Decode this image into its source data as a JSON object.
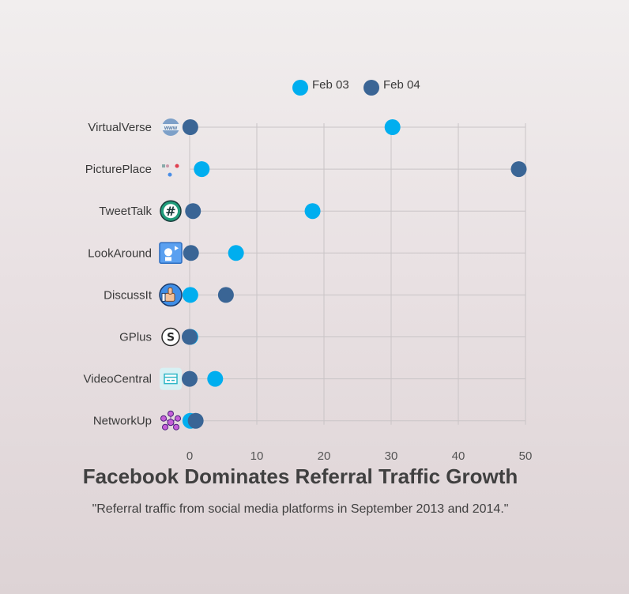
{
  "chart_data": {
    "type": "scatter",
    "title": "Facebook Dominates Referral Traffic Growth",
    "subtitle": "\"Referral traffic from social media platforms in September 2013 and 2014.\"",
    "categories": [
      "VirtualVerse",
      "PicturePlace",
      "TweetTalk",
      "LookAround",
      "DiscussIt",
      "GPlus",
      "VideoCentral",
      "NetworkUp"
    ],
    "category_icons": [
      "www-globe-icon",
      "photo-hearts-icon",
      "hashtag-chat-icon",
      "profile-card-icon",
      "thumbs-up-icon",
      "skype-s-icon",
      "window-icon",
      "social-network-icon"
    ],
    "series": [
      {
        "name": "Feb 03",
        "color": "#00aeef",
        "values": [
          30.2,
          1.8,
          18.3,
          6.9,
          0.1,
          0.1,
          3.8,
          0.1
        ]
      },
      {
        "name": "Feb 04",
        "color": "#3a6595",
        "values": [
          0.1,
          49.0,
          0.5,
          0.2,
          5.4,
          0.0,
          0.0,
          0.9
        ]
      }
    ],
    "xlim": [
      0,
      50
    ],
    "xticks": [
      "0",
      "10",
      "20",
      "30",
      "40",
      "50"
    ],
    "grid": true,
    "legend_position": "top"
  }
}
